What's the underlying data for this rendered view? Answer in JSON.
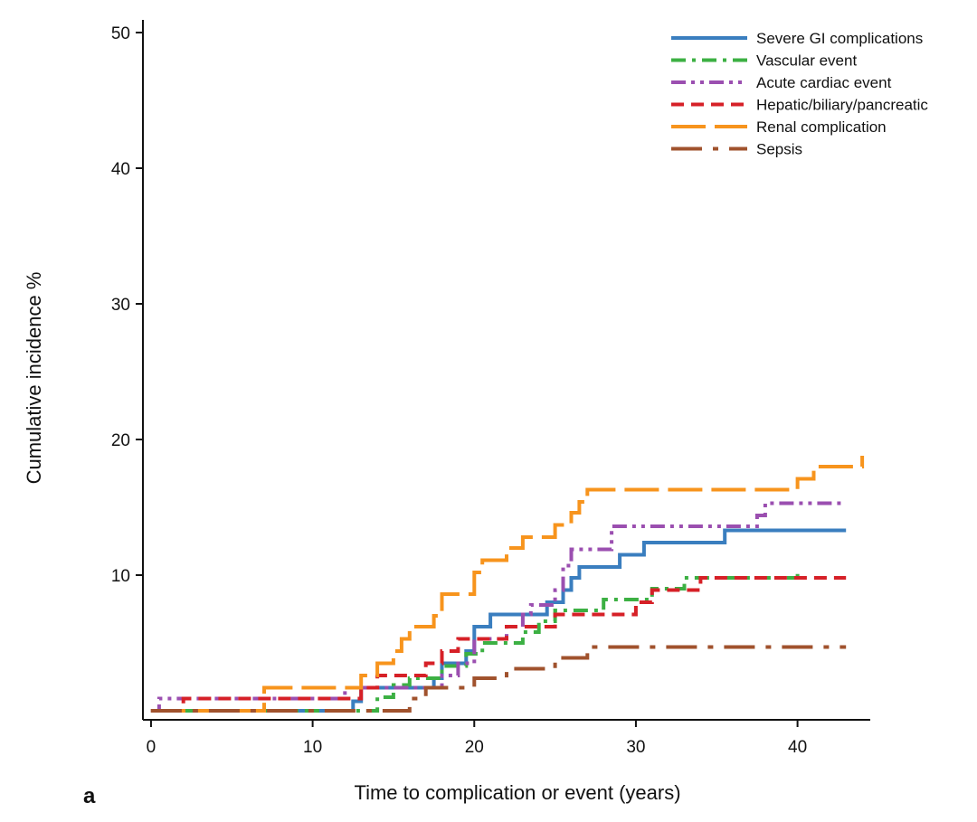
{
  "chart_data": {
    "type": "line",
    "step": true,
    "xlabel": "Time to complication or event (years)",
    "ylabel": "Cumulative incidence %",
    "panel_label": "a",
    "xlim": [
      -0.5,
      44.5
    ],
    "ylim": [
      0,
      50
    ],
    "xticks": [
      0,
      10,
      20,
      30,
      40
    ],
    "yticks": [
      10,
      20,
      30,
      40,
      50
    ],
    "grid": false,
    "legend_position": "top-right",
    "series": [
      {
        "name": "Severe GI complications",
        "color": "#3a7ebf",
        "dash": "solid",
        "points": [
          [
            0,
            0
          ],
          [
            12.5,
            0
          ],
          [
            12.5,
            0.7
          ],
          [
            13,
            0.7
          ],
          [
            13,
            1.7
          ],
          [
            17.5,
            1.7
          ],
          [
            17.5,
            2.4
          ],
          [
            18,
            2.4
          ],
          [
            18,
            3.5
          ],
          [
            19.5,
            3.5
          ],
          [
            19.5,
            4.4
          ],
          [
            20,
            4.4
          ],
          [
            20,
            6.2
          ],
          [
            21,
            6.2
          ],
          [
            21,
            7.1
          ],
          [
            24.5,
            7.1
          ],
          [
            24.5,
            8.0
          ],
          [
            25.5,
            8.0
          ],
          [
            25.5,
            8.9
          ],
          [
            26,
            8.9
          ],
          [
            26,
            9.8
          ],
          [
            26.5,
            9.8
          ],
          [
            26.5,
            10.6
          ],
          [
            29,
            10.6
          ],
          [
            29,
            11.5
          ],
          [
            30.5,
            11.5
          ],
          [
            30.5,
            12.4
          ],
          [
            35.5,
            12.4
          ],
          [
            35.5,
            13.3
          ],
          [
            43,
            13.3
          ]
        ]
      },
      {
        "name": "Vascular event",
        "color": "#3cb043",
        "dash": "dashdot",
        "points": [
          [
            0,
            0
          ],
          [
            14,
            0
          ],
          [
            14,
            1.0
          ],
          [
            15,
            1.0
          ],
          [
            15,
            1.9
          ],
          [
            16,
            1.9
          ],
          [
            16,
            2.4
          ],
          [
            18,
            2.4
          ],
          [
            18,
            3.3
          ],
          [
            19.5,
            3.3
          ],
          [
            19.5,
            4.2
          ],
          [
            20.5,
            4.2
          ],
          [
            20.5,
            5.0
          ],
          [
            23,
            5.0
          ],
          [
            23,
            5.8
          ],
          [
            24,
            5.8
          ],
          [
            24,
            6.6
          ],
          [
            25,
            6.6
          ],
          [
            25,
            7.4
          ],
          [
            28,
            7.4
          ],
          [
            28,
            8.2
          ],
          [
            31,
            8.2
          ],
          [
            31,
            9.0
          ],
          [
            33,
            9.0
          ],
          [
            33,
            9.8
          ],
          [
            40,
            9.8
          ],
          [
            40,
            10.3
          ]
        ]
      },
      {
        "name": "Acute cardiac event",
        "color": "#9b4fb0",
        "dash": "dashdotdot",
        "points": [
          [
            0,
            0
          ],
          [
            0.5,
            0
          ],
          [
            0.5,
            0.9
          ],
          [
            12,
            0.9
          ],
          [
            12,
            1.7
          ],
          [
            18,
            1.7
          ],
          [
            18,
            2.6
          ],
          [
            19,
            2.6
          ],
          [
            19,
            3.5
          ],
          [
            20,
            3.5
          ],
          [
            20,
            5.3
          ],
          [
            22,
            5.3
          ],
          [
            22,
            6.2
          ],
          [
            23,
            6.2
          ],
          [
            23,
            7.1
          ],
          [
            23.5,
            7.1
          ],
          [
            23.5,
            7.8
          ],
          [
            25,
            7.8
          ],
          [
            25,
            8.9
          ],
          [
            25.5,
            8.9
          ],
          [
            25.5,
            10.7
          ],
          [
            26,
            10.7
          ],
          [
            26,
            11.9
          ],
          [
            28.5,
            11.9
          ],
          [
            28.5,
            13.6
          ],
          [
            37.5,
            13.6
          ],
          [
            37.5,
            14.4
          ],
          [
            38,
            14.4
          ],
          [
            38,
            15.3
          ],
          [
            43,
            15.3
          ]
        ]
      },
      {
        "name": "Hepatic/biliary/pancreatic",
        "color": "#d62027",
        "dash": "dashed",
        "points": [
          [
            0,
            0
          ],
          [
            2,
            0
          ],
          [
            2,
            0.9
          ],
          [
            13,
            0.9
          ],
          [
            13,
            1.7
          ],
          [
            14,
            1.7
          ],
          [
            14,
            2.6
          ],
          [
            17,
            2.6
          ],
          [
            17,
            3.5
          ],
          [
            18,
            3.5
          ],
          [
            18,
            4.4
          ],
          [
            19,
            4.4
          ],
          [
            19,
            5.3
          ],
          [
            22,
            5.3
          ],
          [
            22,
            6.2
          ],
          [
            25,
            6.2
          ],
          [
            25,
            7.1
          ],
          [
            30,
            7.1
          ],
          [
            30,
            8.0
          ],
          [
            31,
            8.0
          ],
          [
            31,
            8.9
          ],
          [
            34,
            8.9
          ],
          [
            34,
            9.8
          ],
          [
            43,
            9.8
          ]
        ]
      },
      {
        "name": "Renal complication",
        "color": "#f7941d",
        "dash": "longdash",
        "points": [
          [
            0,
            0
          ],
          [
            7,
            0
          ],
          [
            7,
            1.7
          ],
          [
            13,
            1.7
          ],
          [
            13,
            2.6
          ],
          [
            14,
            2.6
          ],
          [
            14,
            3.5
          ],
          [
            15,
            3.5
          ],
          [
            15,
            4.4
          ],
          [
            15.5,
            4.4
          ],
          [
            15.5,
            5.3
          ],
          [
            16,
            5.3
          ],
          [
            16,
            6.2
          ],
          [
            17.5,
            6.2
          ],
          [
            17.5,
            7.0
          ],
          [
            18,
            7.0
          ],
          [
            18,
            8.6
          ],
          [
            20,
            8.6
          ],
          [
            20,
            10.2
          ],
          [
            20.5,
            10.2
          ],
          [
            20.5,
            11.1
          ],
          [
            22,
            11.1
          ],
          [
            22,
            12.0
          ],
          [
            23,
            12.0
          ],
          [
            23,
            12.8
          ],
          [
            25,
            12.8
          ],
          [
            25,
            13.7
          ],
          [
            26,
            13.7
          ],
          [
            26,
            14.6
          ],
          [
            26.5,
            14.6
          ],
          [
            26.5,
            15.4
          ],
          [
            27,
            15.4
          ],
          [
            27,
            16.3
          ],
          [
            40,
            16.3
          ],
          [
            40,
            17.1
          ],
          [
            41,
            17.1
          ],
          [
            41,
            18.0
          ],
          [
            44,
            18.0
          ],
          [
            44,
            18.8
          ]
        ]
      },
      {
        "name": "Sepsis",
        "color": "#a0522d",
        "dash": "longdashdot",
        "points": [
          [
            0,
            0
          ],
          [
            16,
            0
          ],
          [
            16,
            0.9
          ],
          [
            17,
            0.9
          ],
          [
            17,
            1.7
          ],
          [
            20,
            1.7
          ],
          [
            20,
            2.4
          ],
          [
            22,
            2.4
          ],
          [
            22,
            3.1
          ],
          [
            25,
            3.1
          ],
          [
            25,
            3.9
          ],
          [
            27,
            3.9
          ],
          [
            27,
            4.7
          ],
          [
            43,
            4.7
          ]
        ]
      }
    ]
  }
}
